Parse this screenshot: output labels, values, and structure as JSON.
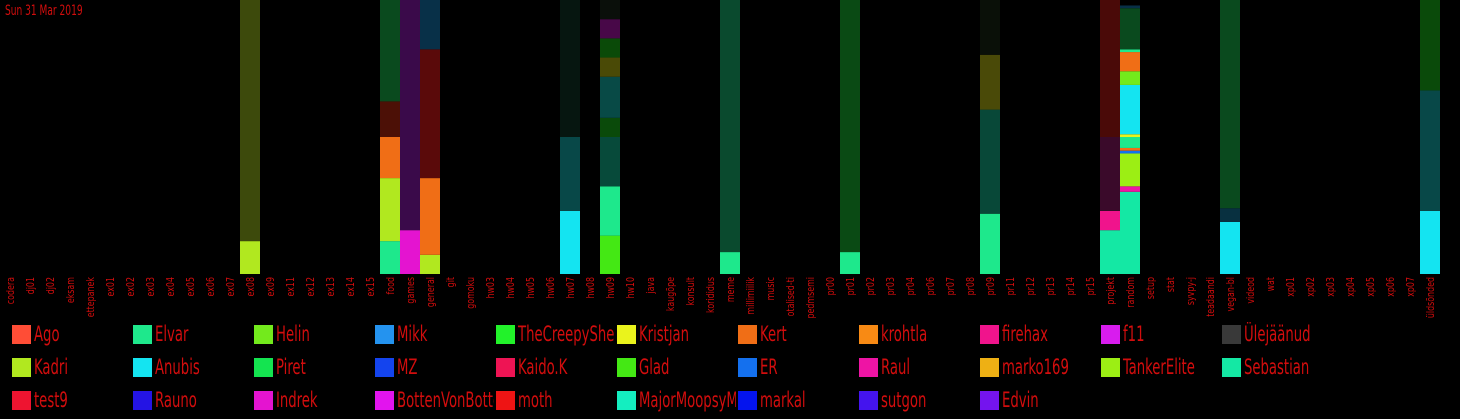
{
  "date_label": "Sun 31 Mar 2019",
  "chart_data": {
    "type": "bar",
    "stacked": true,
    "ylim": [
      0,
      100
    ],
    "categories": [
      "codera",
      "dj01",
      "dj02",
      "eksam",
      "ettepanek",
      "ex01",
      "ex02",
      "ex03",
      "ex04",
      "ex05",
      "ex06",
      "ex07",
      "ex08",
      "ex09",
      "ex11",
      "ex12",
      "ex13",
      "ex14",
      "ex15",
      "food",
      "games",
      "general",
      "git",
      "gomoku",
      "hw03",
      "hw04",
      "hw05",
      "hw06",
      "hw07",
      "hw08",
      "hw09",
      "hw10",
      "java",
      "kaugõpe",
      "konsult",
      "korididus",
      "meme",
      "millimiilik",
      "music",
      "otalised-ti",
      "pedmsemi",
      "pr00",
      "pr01",
      "pr02",
      "pr03",
      "pr04",
      "pr06",
      "pr07",
      "pr08",
      "pr09",
      "pr11",
      "pr12",
      "pr13",
      "pr14",
      "pr15",
      "projekt",
      "random",
      "setup",
      "stat",
      "syvpy-j",
      "teadaandi",
      "vegan-bl",
      "videod",
      "wat",
      "xp01",
      "xp02",
      "xp03",
      "xp04",
      "xp05",
      "xp06",
      "xp07",
      "üldsõnded"
    ],
    "stacks": {
      "ex08": [
        [
          "Kadri",
          12
        ],
        [
          "Ülejäänud",
          88,
          "#3d4a0c"
        ]
      ],
      "food": [
        [
          "Elvar",
          12
        ],
        [
          "Kadri",
          23
        ],
        [
          "Kert",
          15
        ],
        [
          "Ülejäänud",
          13,
          "#4c1006"
        ],
        [
          "Ülejäänud",
          37,
          "#0a4a1e"
        ]
      ],
      "games": [
        [
          "Indrek",
          16
        ],
        [
          "Ülejäänud",
          84,
          "#3a0a4a"
        ]
      ],
      "general": [
        [
          "Kadri",
          7
        ],
        [
          "Kert",
          28
        ],
        [
          "Ülejäänud",
          47,
          "#5a0a0a"
        ],
        [
          "Ülejäänud",
          18,
          "#083048"
        ]
      ],
      "hw07": [
        [
          "Anubis",
          23
        ],
        [
          "Ülejäänud",
          27,
          "#084848"
        ],
        [
          "Ülejäänud",
          50,
          "#061610"
        ]
      ],
      "hw09": [
        [
          "Glad",
          14
        ],
        [
          "Elvar",
          18
        ],
        [
          "Ülejäänud",
          18,
          "#074a3a"
        ],
        [
          "Ülejäänud",
          7,
          "#0a4a0a"
        ],
        [
          "Ülejäänud",
          15,
          "#084a46"
        ],
        [
          "Ülejäänud",
          7,
          "#4a4a06"
        ],
        [
          "Ülejäänud",
          7,
          "#0a4a08"
        ],
        [
          "Ülejäänud",
          7,
          "#480848"
        ],
        [
          "Ülejäänud",
          7,
          "#0a0f0a"
        ]
      ],
      "meme": [
        [
          "Elvar",
          8
        ],
        [
          "Ülejäänud",
          92,
          "#0a4a2e"
        ]
      ],
      "pr01": [
        [
          "Elvar",
          8
        ],
        [
          "Ülejäänud",
          92,
          "#0a4a14"
        ]
      ],
      "pr09": [
        [
          "Elvar",
          22
        ],
        [
          "Ülejäänud",
          38,
          "#084838"
        ],
        [
          "Ülejäänud",
          20,
          "#4a4a08"
        ],
        [
          "Ülejäänud",
          20,
          "#0a1008"
        ]
      ],
      "projekt": [
        [
          "Sebastian",
          16
        ],
        [
          "firehax",
          7
        ],
        [
          "Ülejäänud",
          27,
          "#3a0a2a"
        ],
        [
          "Ülejäänud",
          50,
          "#4a0a08"
        ]
      ],
      "random": [
        [
          "Sebastian",
          30
        ],
        [
          "Raul",
          2
        ],
        [
          "TankerElite",
          12
        ],
        [
          "ER",
          1
        ],
        [
          "Kert",
          1
        ],
        [
          "Elvar",
          4
        ],
        [
          "Kristjan",
          1
        ],
        [
          "Anubis",
          18
        ],
        [
          "Helin",
          5
        ],
        [
          "Kert",
          7
        ],
        [
          "Elvar",
          1
        ],
        [
          "Ülejäänud",
          15,
          "#0a4a1e"
        ],
        [
          "Ülejäänud",
          1,
          "#083048"
        ]
      ],
      "vegan-bl": [
        [
          "Anubis",
          19
        ],
        [
          "Ülejäänud",
          5,
          "#083040"
        ],
        [
          "Ülejäänud",
          76,
          "#0a4a1e"
        ]
      ],
      "üldsõnded": [
        [
          "Anubis",
          23
        ],
        [
          "Ülejäänud",
          44,
          "#084848"
        ],
        [
          "Ülejäänud",
          33,
          "#0a4a0a"
        ]
      ]
    },
    "legend": [
      {
        "name": "Ago",
        "color": "#ff4d36"
      },
      {
        "name": "Elvar",
        "color": "#1ee88c"
      },
      {
        "name": "Helin",
        "color": "#73ea1c"
      },
      {
        "name": "Mikk",
        "color": "#2493ef"
      },
      {
        "name": "TheCreepySheep",
        "color": "#22f22a"
      },
      {
        "name": "Kristjan",
        "color": "#eaf31c"
      },
      {
        "name": "Kert",
        "color": "#f06e16"
      },
      {
        "name": "krohtla",
        "color": "#f88a14"
      },
      {
        "name": "firehax",
        "color": "#f0148c"
      },
      {
        "name": "f11",
        "color": "#d81cee"
      },
      {
        "name": "Ülejäänud",
        "color": "#393939"
      },
      {
        "name": "Kadri",
        "color": "#b1e81f"
      },
      {
        "name": "Anubis",
        "color": "#14e4f1"
      },
      {
        "name": "Piret",
        "color": "#14e450"
      },
      {
        "name": "MZ",
        "color": "#1444ee"
      },
      {
        "name": "Kaido.K",
        "color": "#ee1454"
      },
      {
        "name": "Glad",
        "color": "#44e814"
      },
      {
        "name": "ER",
        "color": "#1470ee"
      },
      {
        "name": "Raul",
        "color": "#ee14a4"
      },
      {
        "name": "marko169",
        "color": "#eeb014"
      },
      {
        "name": "TankerElite",
        "color": "#9cee14"
      },
      {
        "name": "Sebastian",
        "color": "#14e8a4"
      },
      {
        "name": "test9",
        "color": "#ee1430"
      },
      {
        "name": "Rauno",
        "color": "#2414e4"
      },
      {
        "name": "Indrek",
        "color": "#e414d0"
      },
      {
        "name": "BottenVonBottenstein",
        "color": "#e214ee"
      },
      {
        "name": "moth",
        "color": "#ee1414"
      },
      {
        "name": "MajorMoopsyMoopsyMoo",
        "color": "#14eec0"
      },
      {
        "name": "markal",
        "color": "#0414ee"
      },
      {
        "name": "sutgon",
        "color": "#4414ee"
      },
      {
        "name": "Edvin",
        "color": "#7414ee"
      }
    ]
  }
}
